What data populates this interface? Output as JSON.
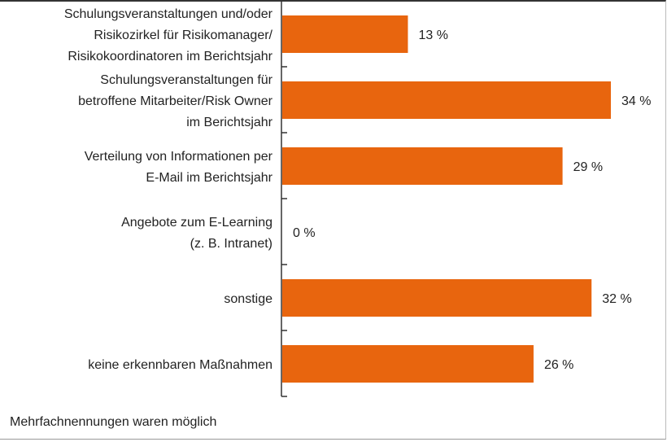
{
  "chart_data": {
    "type": "bar",
    "orientation": "horizontal",
    "categories": [
      "Schulungsveranstaltungen und/oder\nRisikozirkel für Risikomanager/\nRisikokoordinatoren im Berichtsjahr",
      "Schulungsveranstaltungen für\nbetroffene Mitarbeiter/Risk Owner\nim Berichtsjahr",
      "Verteilung von Informationen per\nE-Mail im Berichtsjahr",
      "Angebote zum E-Learning\n(z. B. Intranet)",
      "sonstige",
      "keine erkennbaren Maßnahmen"
    ],
    "values": [
      13,
      34,
      29,
      0,
      32,
      26
    ],
    "data_labels": [
      "13 %",
      "34 %",
      "29 %",
      "0 %",
      "32 %",
      "26 %"
    ],
    "unit": "%",
    "xlim": [
      0,
      35
    ],
    "grid": false,
    "bar_color": "#E8650E",
    "footnote": "Mehrfachnennungen waren möglich"
  }
}
